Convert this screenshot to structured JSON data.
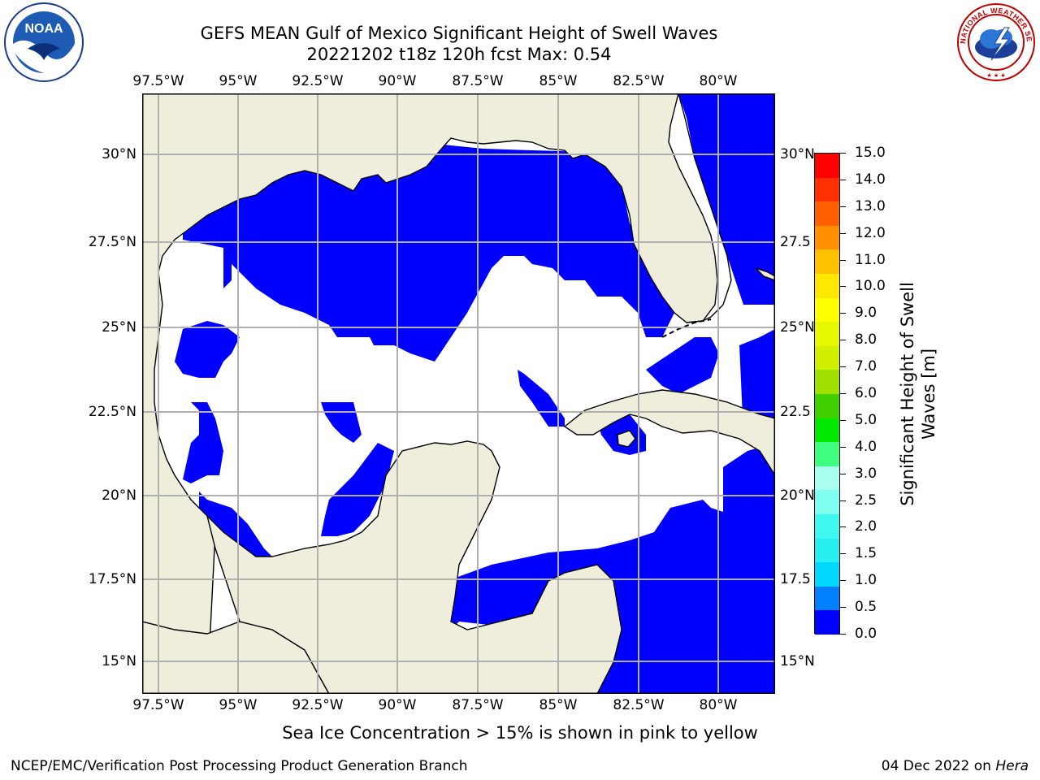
{
  "title": {
    "line1": "GEFS MEAN Gulf of Mexico Significant Height of Swell Waves",
    "line2": "20221202 t18z 120h fcst   Max: 0.54"
  },
  "axes": {
    "lon_labels": [
      "97.5°W",
      "95°W",
      "92.5°W",
      "90°W",
      "87.5°W",
      "85°W",
      "82.5°W",
      "80°W"
    ],
    "lat_labels_left": [
      "30°N",
      "27.5°N",
      "25°N",
      "22.5°N",
      "20°N",
      "17.5°N",
      "15°N"
    ],
    "lat_labels_right": [
      "30°N",
      "27.5",
      "25°N",
      "22.5",
      "20°N",
      "17.5",
      "15°N"
    ]
  },
  "colorbar": {
    "title_line1": "Significant Height of Swell",
    "title_line2": "Waves [m]",
    "ticks": [
      "0.0",
      "0.5",
      "1.0",
      "1.5",
      "2.0",
      "2.5",
      "3.0",
      "4.0",
      "5.0",
      "6.0",
      "7.0",
      "8.0",
      "9.0",
      "10.0",
      "11.0",
      "12.0",
      "13.0",
      "14.0",
      "15.0"
    ],
    "colors": [
      "#0000ff",
      "#0080ff",
      "#00d8ff",
      "#28f0f0",
      "#40f8f0",
      "#80fff0",
      "#a8fff0",
      "#40ff80",
      "#00e800",
      "#40d000",
      "#a0e000",
      "#d0f000",
      "#e8f800",
      "#ffff00",
      "#ffe800",
      "#ffc000",
      "#ff9000",
      "#ff6000",
      "#ff3000",
      "#ff0000"
    ]
  },
  "map_colors": {
    "land": "#efeedc",
    "ocean_low": "#0000ff",
    "ocean_calm": "#ffffff",
    "grid": "#b0b0b0"
  },
  "map_data": {
    "max_swell_height_m": 0.54,
    "forecast_hour": "120h"
  },
  "footer": {
    "note": "Sea Ice Concentration > 15% is shown in pink to yellow",
    "credit": "NCEP/EMC/Verification Post Processing Product Generation Branch",
    "date": "04 Dec 2022 on ",
    "machine": "Hera"
  },
  "logos": {
    "noaa_text": "NOAA",
    "nws_text": "NATIONAL WEATHER SERVICE"
  }
}
